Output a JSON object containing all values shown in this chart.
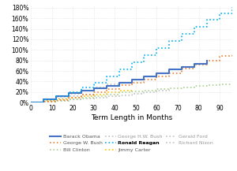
{
  "title": "",
  "xlabel": "Term Length in Months",
  "ylabel": "",
  "xlim": [
    0,
    96
  ],
  "ylim": [
    0,
    1.85
  ],
  "yticks": [
    0,
    0.2,
    0.4,
    0.6,
    0.8,
    1.0,
    1.2,
    1.4,
    1.6,
    1.8
  ],
  "xticks": [
    0,
    10,
    20,
    30,
    40,
    50,
    60,
    70,
    80,
    90
  ],
  "series": {
    "Ronald Reagan": {
      "color": "#00B0F0",
      "linestyle": "dotted",
      "linewidth": 1.2,
      "bold": true,
      "months": [
        0,
        6,
        12,
        18,
        24,
        30,
        36,
        42,
        48,
        54,
        60,
        66,
        72,
        78,
        84,
        90,
        96
      ],
      "values": [
        0,
        0.06,
        0.12,
        0.2,
        0.28,
        0.38,
        0.5,
        0.63,
        0.76,
        0.9,
        1.03,
        1.17,
        1.3,
        1.44,
        1.57,
        1.7,
        1.82
      ]
    },
    "George W. Bush": {
      "color": "#ED7D31",
      "linestyle": "dotted",
      "linewidth": 1.2,
      "bold": false,
      "months": [
        0,
        6,
        12,
        18,
        24,
        30,
        36,
        42,
        48,
        54,
        60,
        66,
        72,
        78,
        84,
        90,
        96
      ],
      "values": [
        0,
        0.02,
        0.05,
        0.1,
        0.15,
        0.2,
        0.26,
        0.33,
        0.38,
        0.43,
        0.49,
        0.56,
        0.64,
        0.72,
        0.8,
        0.88,
        0.94
      ]
    },
    "Barack Obama": {
      "color": "#4472C4",
      "linestyle": "solid",
      "linewidth": 1.5,
      "bold": false,
      "months": [
        0,
        6,
        12,
        18,
        24,
        30,
        36,
        42,
        48,
        54,
        60,
        66,
        72,
        78,
        84
      ],
      "values": [
        0,
        0.06,
        0.12,
        0.18,
        0.22,
        0.27,
        0.32,
        0.38,
        0.44,
        0.5,
        0.56,
        0.63,
        0.68,
        0.74,
        0.8
      ]
    },
    "Bill Clinton": {
      "color": "#A9D18E",
      "linestyle": "dotted",
      "linewidth": 1.2,
      "bold": false,
      "months": [
        0,
        6,
        12,
        18,
        24,
        30,
        36,
        42,
        48,
        54,
        60,
        66,
        72,
        78,
        84,
        90,
        96
      ],
      "values": [
        0,
        0.02,
        0.04,
        0.07,
        0.1,
        0.13,
        0.16,
        0.19,
        0.21,
        0.23,
        0.25,
        0.27,
        0.29,
        0.31,
        0.33,
        0.34,
        0.35
      ]
    },
    "George H.W. Bush": {
      "color": "#C0C0C0",
      "linestyle": "dotted",
      "linewidth": 1.2,
      "bold": false,
      "months": [
        0,
        6,
        12,
        18,
        24,
        30,
        36,
        42,
        48
      ],
      "values": [
        0,
        0.05,
        0.11,
        0.17,
        0.23,
        0.29,
        0.34,
        0.38,
        0.42
      ]
    },
    "Jimmy Carter": {
      "color": "#FFC000",
      "linestyle": "dotted",
      "linewidth": 1.2,
      "bold": false,
      "months": [
        0,
        6,
        12,
        18,
        24,
        30,
        36,
        42,
        48
      ],
      "values": [
        0,
        0.03,
        0.06,
        0.09,
        0.12,
        0.16,
        0.19,
        0.22,
        0.25
      ]
    },
    "Gerald Ford": {
      "color": "#C0C0C0",
      "linestyle": "dotted",
      "linewidth": 1.2,
      "bold": false,
      "months": [
        0,
        6,
        12,
        18,
        24,
        30
      ],
      "values": [
        0,
        0.04,
        0.08,
        0.12,
        0.16,
        0.19
      ]
    },
    "Richard Nixon": {
      "color": "#C0C0C0",
      "linestyle": "dotted",
      "linewidth": 1.2,
      "bold": false,
      "months": [
        0,
        6,
        12,
        18,
        24,
        30,
        36,
        42,
        48,
        54,
        60,
        66
      ],
      "values": [
        0,
        0.02,
        0.04,
        0.06,
        0.08,
        0.1,
        0.12,
        0.14,
        0.17,
        0.2,
        0.23,
        0.26
      ]
    }
  },
  "legend": [
    {
      "label": "Barack Obama",
      "color": "#4472C4",
      "linestyle": "solid",
      "bold": false
    },
    {
      "label": "George W. Bush",
      "color": "#ED7D31",
      "linestyle": "dotted",
      "bold": false
    },
    {
      "label": "Bill Clinton",
      "color": "#A9D18E",
      "linestyle": "dotted",
      "bold": false
    },
    {
      "label": "George H.W. Bush",
      "color": "#C0C0C0",
      "linestyle": "dotted",
      "bold": false
    },
    {
      "label": "Ronald Reagan",
      "color": "#00B0F0",
      "linestyle": "dotted",
      "bold": true
    },
    {
      "label": "Jimmy Carter",
      "color": "#FFC000",
      "linestyle": "dotted",
      "bold": false
    },
    {
      "label": "Gerald Ford",
      "color": "#C0C0C0",
      "linestyle": "dotted",
      "bold": false
    },
    {
      "label": "Richard Nixon",
      "color": "#C0C0C0",
      "linestyle": "dotted",
      "bold": false
    }
  ],
  "background_color": "#FFFFFF",
  "grid_color": "#D9D9D9"
}
